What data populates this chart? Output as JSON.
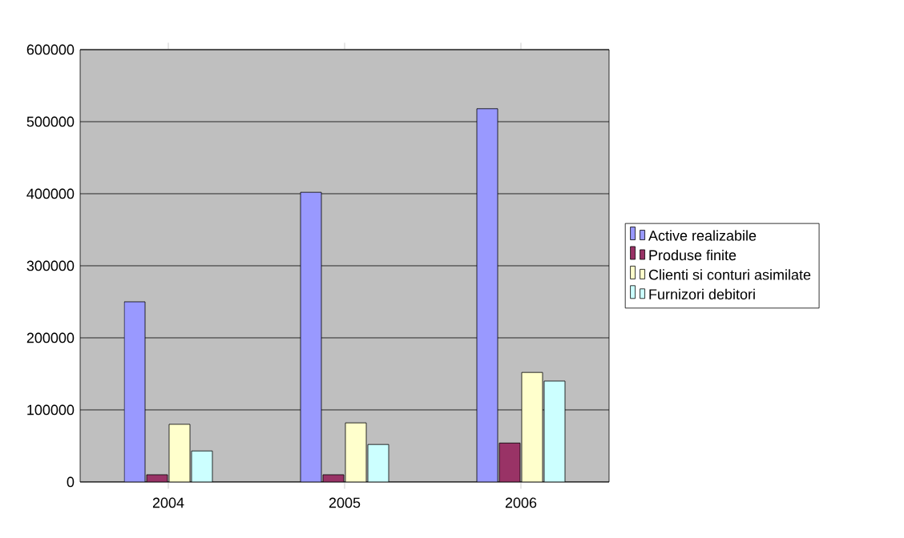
{
  "chart_data": {
    "type": "bar",
    "categories": [
      "2004",
      "2005",
      "2006"
    ],
    "series": [
      {
        "name": "Active realizabile",
        "color": "#9999ff",
        "values": [
          250000,
          402000,
          518000
        ]
      },
      {
        "name": "Produse finite",
        "color": "#993366",
        "values": [
          10000,
          10000,
          54000
        ]
      },
      {
        "name": "Clienti si conturi asimilate",
        "color": "#ffffcc",
        "values": [
          80000,
          82000,
          152000
        ]
      },
      {
        "name": "Furnizori debitori",
        "color": "#ccffff",
        "values": [
          43000,
          52000,
          140000
        ]
      }
    ],
    "ylim": [
      0,
      600000
    ],
    "yticks": [
      0,
      100000,
      200000,
      300000,
      400000,
      500000,
      600000
    ],
    "grid": "y",
    "legend": "right"
  }
}
